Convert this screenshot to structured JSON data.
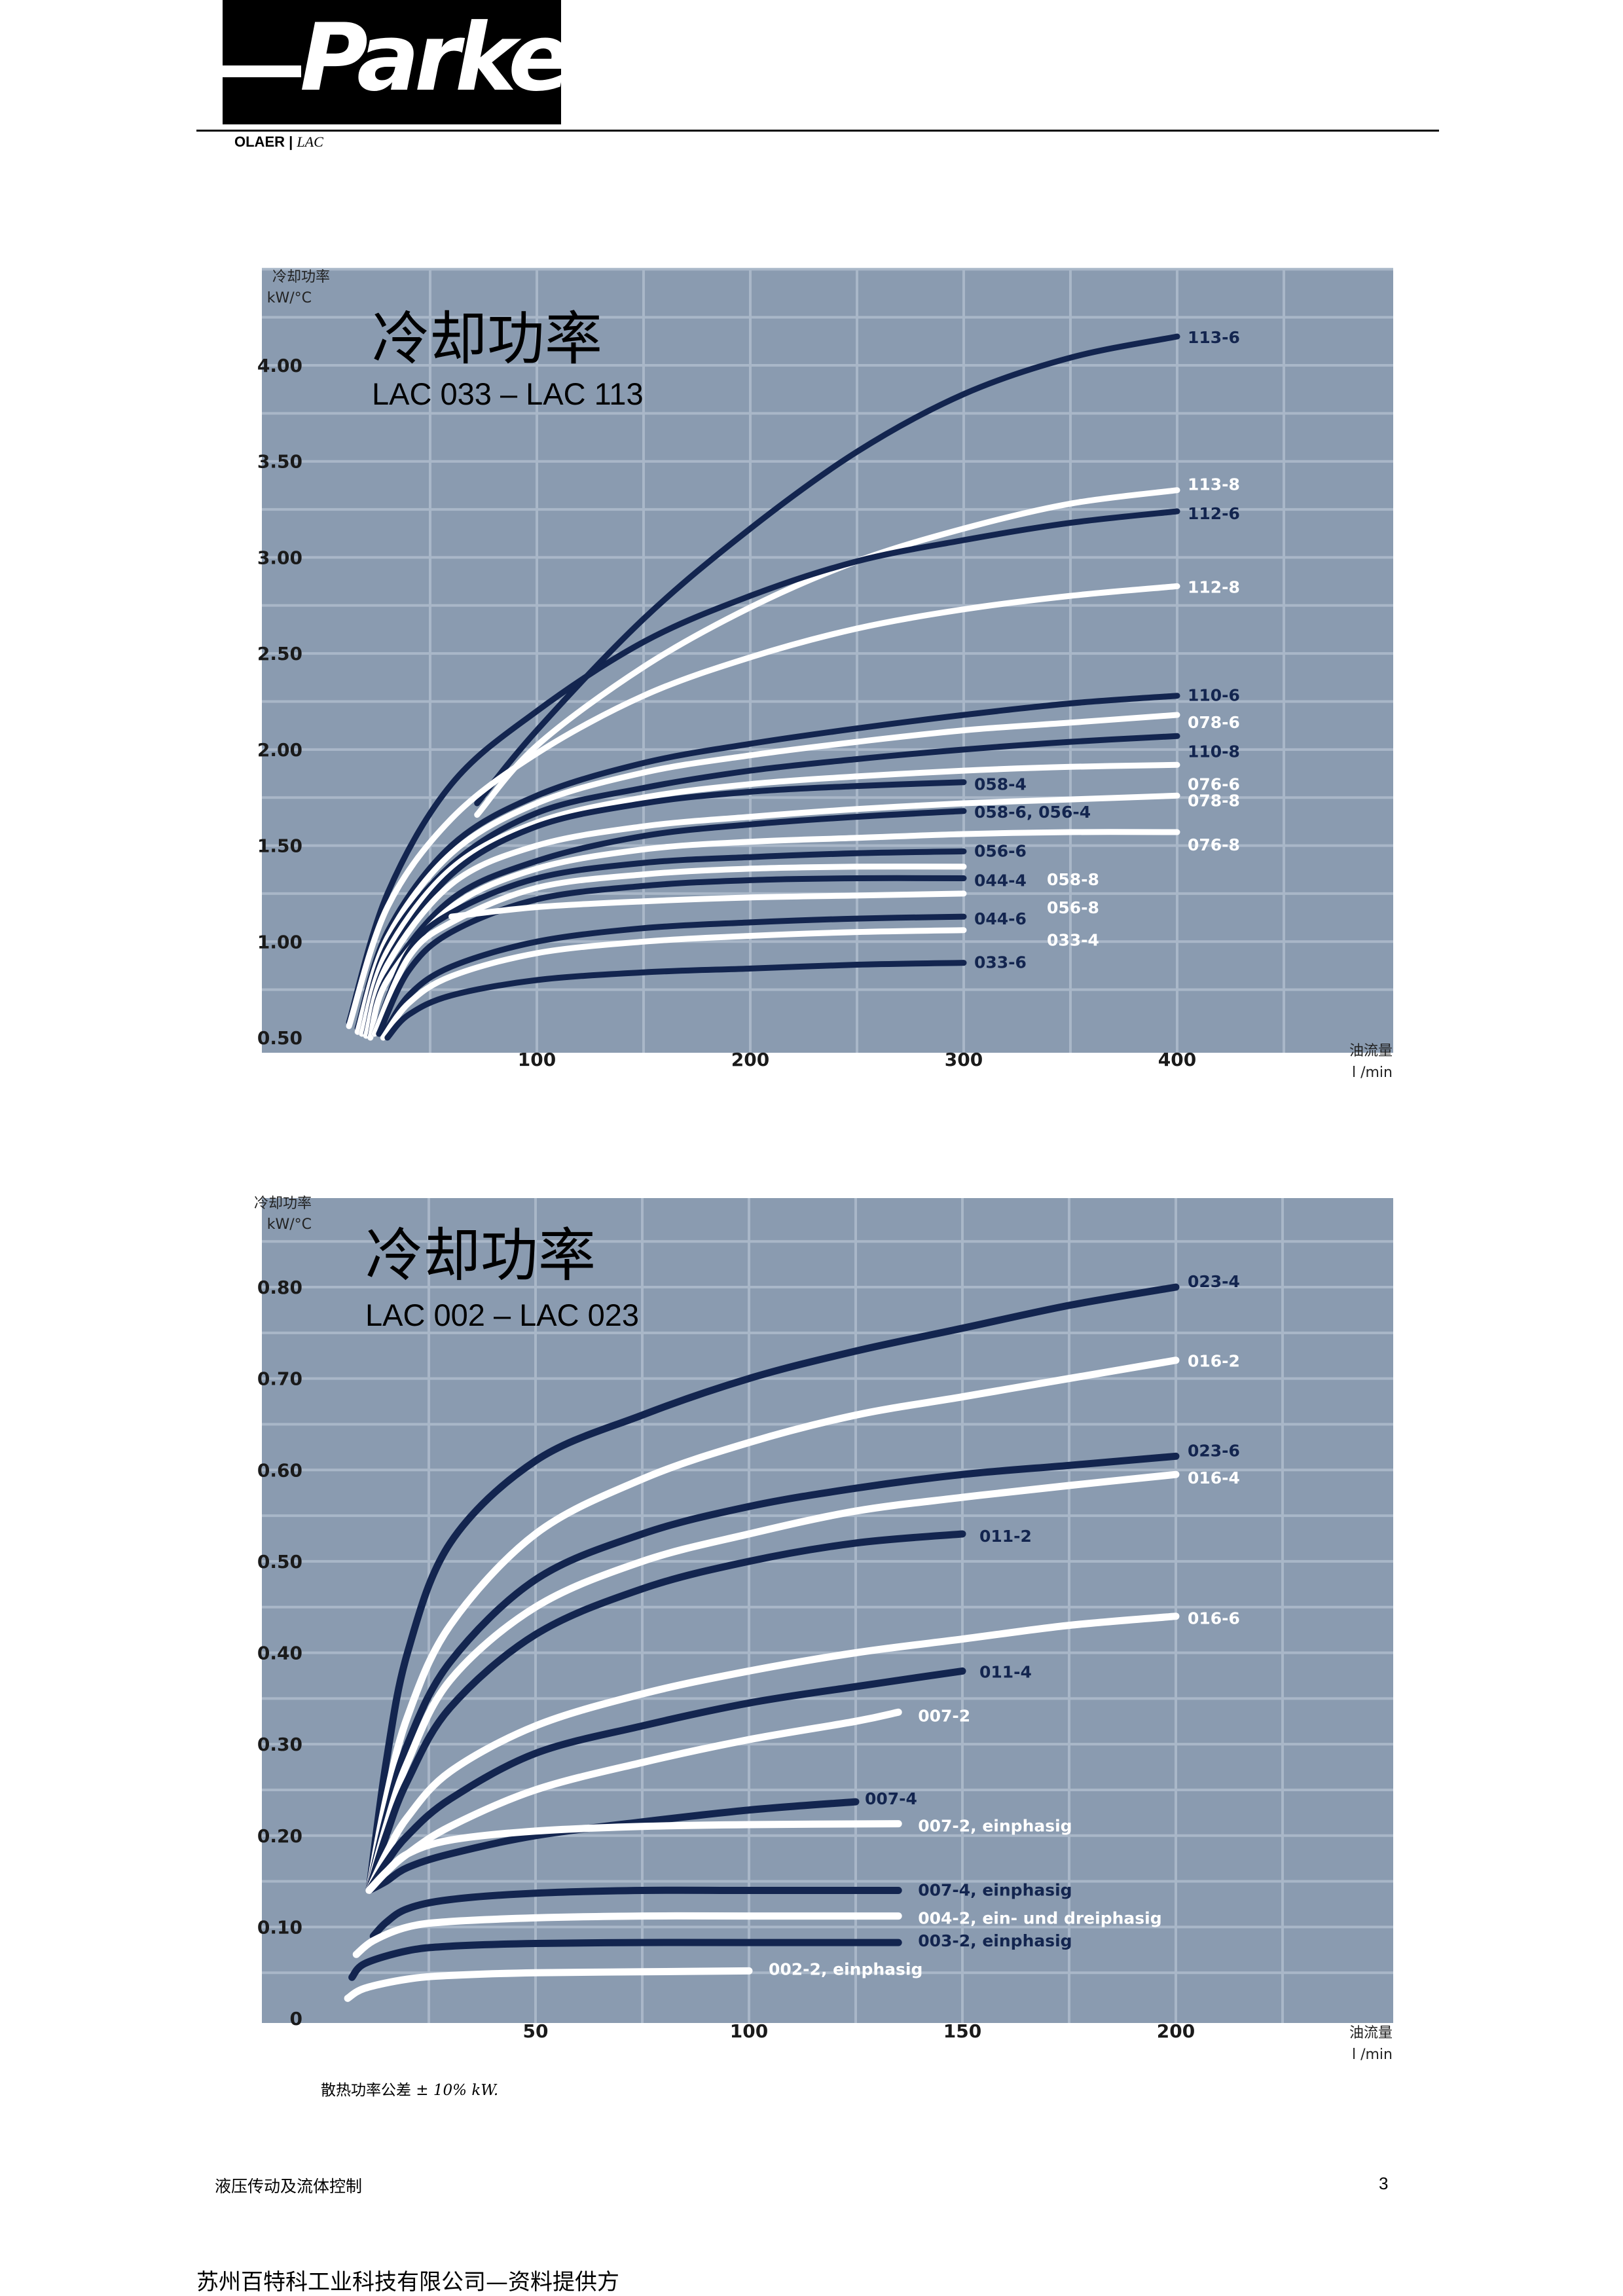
{
  "header": {
    "logo": "Parker",
    "brand": "OLAER |",
    "brand_sub": "LAC"
  },
  "colors": {
    "plot_bg": "#8a9bb0",
    "grid": "#a9b7c8",
    "navy": "#13254f",
    "white": "#ffffff",
    "label_navy": "#13254f",
    "label_white": "#ffffff"
  },
  "chart_data": [
    {
      "type": "line",
      "title": "冷却功率",
      "subtitle": "LAC 033 – LAC 113",
      "ylabel_line1": "冷却功率",
      "ylabel_line2": "kW/°C",
      "xlabel_line1": "油流量",
      "xlabel_line2": "l /min",
      "xlim": [
        0,
        450
      ],
      "ylim": [
        0.5,
        4.5
      ],
      "xticks": [
        100,
        200,
        300,
        400
      ],
      "yticks": [
        0.5,
        1.0,
        1.5,
        2.0,
        2.5,
        3.0,
        3.5,
        4.0
      ],
      "ytick_labels": [
        "0.50",
        "1.00",
        "1.50",
        "2.00",
        "2.50",
        "3.00",
        "3.50",
        "4.00"
      ],
      "xtick_labels": [
        "100",
        "200",
        "300",
        "400"
      ],
      "grid": true,
      "series": [
        {
          "name": "113-6",
          "color": "navy",
          "x": [
            72,
            100,
            150,
            200,
            250,
            300,
            350,
            400
          ],
          "y": [
            1.72,
            2.1,
            2.68,
            3.15,
            3.55,
            3.85,
            4.04,
            4.15
          ]
        },
        {
          "name": "113-8",
          "color": "white",
          "x": [
            72,
            100,
            150,
            200,
            250,
            300,
            350,
            400
          ],
          "y": [
            1.66,
            2.02,
            2.43,
            2.74,
            2.98,
            3.15,
            3.28,
            3.35
          ]
        },
        {
          "name": "112-6",
          "color": "navy",
          "x": [
            12,
            30,
            60,
            100,
            150,
            200,
            250,
            300,
            350,
            400
          ],
          "y": [
            0.58,
            1.25,
            1.82,
            2.2,
            2.56,
            2.8,
            2.98,
            3.09,
            3.18,
            3.24
          ]
        },
        {
          "name": "112-8",
          "color": "white",
          "x": [
            12,
            30,
            60,
            100,
            150,
            200,
            250,
            300,
            350,
            400
          ],
          "y": [
            0.56,
            1.18,
            1.64,
            1.98,
            2.28,
            2.48,
            2.63,
            2.73,
            2.8,
            2.85
          ]
        },
        {
          "name": "110-6",
          "color": "navy",
          "x": [
            16,
            30,
            60,
            100,
            150,
            200,
            250,
            300,
            350,
            400
          ],
          "y": [
            0.55,
            1.05,
            1.5,
            1.76,
            1.93,
            2.03,
            2.11,
            2.18,
            2.24,
            2.28
          ]
        },
        {
          "name": "078-6",
          "color": "white",
          "x": [
            16,
            30,
            60,
            100,
            150,
            200,
            250,
            300,
            350,
            400
          ],
          "y": [
            0.53,
            1.02,
            1.46,
            1.72,
            1.88,
            1.97,
            2.04,
            2.1,
            2.14,
            2.18
          ]
        },
        {
          "name": "110-8",
          "color": "navy",
          "x": [
            18,
            30,
            60,
            100,
            150,
            200,
            250,
            300,
            350,
            400
          ],
          "y": [
            0.52,
            0.98,
            1.4,
            1.67,
            1.8,
            1.89,
            1.95,
            2.0,
            2.04,
            2.07
          ]
        },
        {
          "name": "076-6",
          "color": "white",
          "x": [
            18,
            30,
            60,
            100,
            150,
            200,
            250,
            300,
            350,
            400
          ],
          "y": [
            0.52,
            0.95,
            1.38,
            1.62,
            1.75,
            1.82,
            1.86,
            1.89,
            1.91,
            1.92
          ]
        },
        {
          "name": "058-4",
          "color": "navy",
          "x": [
            20,
            30,
            60,
            100,
            150,
            200,
            250,
            300
          ],
          "y": [
            0.52,
            0.9,
            1.35,
            1.6,
            1.72,
            1.78,
            1.81,
            1.83
          ]
        },
        {
          "name": "078-8",
          "color": "white",
          "x": [
            20,
            30,
            60,
            100,
            150,
            200,
            250,
            300,
            350,
            400
          ],
          "y": [
            0.51,
            0.88,
            1.3,
            1.5,
            1.6,
            1.65,
            1.69,
            1.72,
            1.74,
            1.76
          ]
        },
        {
          "name": "058-6, 056-4",
          "color": "navy",
          "x": [
            22,
            30,
            60,
            100,
            150,
            200,
            250,
            300
          ],
          "y": [
            0.51,
            0.82,
            1.22,
            1.42,
            1.55,
            1.61,
            1.65,
            1.68
          ]
        },
        {
          "name": "076-8",
          "color": "white",
          "x": [
            22,
            30,
            60,
            100,
            150,
            200,
            250,
            300,
            350,
            400
          ],
          "y": [
            0.5,
            0.8,
            1.18,
            1.38,
            1.48,
            1.52,
            1.54,
            1.56,
            1.57,
            1.57
          ]
        },
        {
          "name": "056-6",
          "color": "navy",
          "x": [
            24,
            40,
            60,
            100,
            150,
            200,
            250,
            300
          ],
          "y": [
            0.52,
            0.95,
            1.15,
            1.33,
            1.41,
            1.44,
            1.46,
            1.47
          ]
        },
        {
          "name": "058-8",
          "color": "white",
          "x": [
            24,
            40,
            60,
            100,
            150,
            200,
            250,
            300
          ],
          "y": [
            0.52,
            0.92,
            1.1,
            1.28,
            1.35,
            1.38,
            1.39,
            1.39
          ]
        },
        {
          "name": "044-4",
          "color": "navy",
          "x": [
            26,
            40,
            60,
            100,
            150,
            200,
            250,
            300
          ],
          "y": [
            0.52,
            0.85,
            1.05,
            1.22,
            1.29,
            1.32,
            1.33,
            1.33
          ]
        },
        {
          "name": "056-8",
          "color": "white",
          "x": [
            60,
            100,
            150,
            200,
            250,
            300
          ],
          "y": [
            1.13,
            1.18,
            1.21,
            1.23,
            1.24,
            1.25
          ]
        },
        {
          "name": "044-6",
          "color": "navy",
          "x": [
            28,
            40,
            60,
            100,
            150,
            200,
            250,
            300
          ],
          "y": [
            0.51,
            0.72,
            0.87,
            1.0,
            1.07,
            1.1,
            1.12,
            1.13
          ]
        },
        {
          "name": "033-4",
          "color": "white",
          "x": [
            28,
            40,
            60,
            100,
            150,
            200,
            250,
            300
          ],
          "y": [
            0.5,
            0.68,
            0.82,
            0.94,
            1.0,
            1.03,
            1.05,
            1.06
          ]
        },
        {
          "name": "033-6",
          "color": "navy",
          "x": [
            30,
            40,
            60,
            100,
            150,
            200,
            250,
            300
          ],
          "y": [
            0.5,
            0.62,
            0.72,
            0.8,
            0.84,
            0.86,
            0.88,
            0.89
          ]
        }
      ]
    },
    {
      "type": "line",
      "title": "冷却功率",
      "subtitle": "LAC 002 – LAC 023",
      "ylabel_line1": "冷却功率",
      "ylabel_line2": "kW/°C",
      "xlabel_line1": "油流量",
      "xlabel_line2": "l /min",
      "xlim": [
        0,
        225
      ],
      "ylim": [
        0,
        0.9
      ],
      "xticks": [
        50,
        100,
        150,
        200
      ],
      "yticks": [
        0,
        0.1,
        0.2,
        0.3,
        0.4,
        0.5,
        0.6,
        0.7,
        0.8
      ],
      "ytick_labels": [
        "0",
        "0.10",
        "0.20",
        "0.30",
        "0.40",
        "0.50",
        "0.60",
        "0.70",
        "0.80"
      ],
      "xtick_labels": [
        "50",
        "100",
        "150",
        "200"
      ],
      "grid": true,
      "series": [
        {
          "name": "023-4",
          "color": "navy",
          "x": [
            11,
            15,
            20,
            30,
            50,
            75,
            100,
            125,
            150,
            175,
            200
          ],
          "y": [
            0.14,
            0.28,
            0.4,
            0.52,
            0.61,
            0.66,
            0.7,
            0.73,
            0.755,
            0.78,
            0.8
          ]
        },
        {
          "name": "016-2",
          "color": "white",
          "x": [
            11,
            15,
            20,
            30,
            50,
            75,
            100,
            125,
            150,
            175,
            200
          ],
          "y": [
            0.14,
            0.24,
            0.33,
            0.43,
            0.53,
            0.59,
            0.63,
            0.66,
            0.68,
            0.7,
            0.72
          ]
        },
        {
          "name": "023-6",
          "color": "navy",
          "x": [
            11,
            15,
            20,
            30,
            50,
            75,
            100,
            125,
            150,
            175,
            200
          ],
          "y": [
            0.14,
            0.22,
            0.3,
            0.39,
            0.48,
            0.53,
            0.56,
            0.58,
            0.595,
            0.605,
            0.615
          ]
        },
        {
          "name": "016-4",
          "color": "white",
          "x": [
            11,
            15,
            20,
            30,
            50,
            75,
            100,
            125,
            150,
            175,
            200
          ],
          "y": [
            0.14,
            0.21,
            0.28,
            0.37,
            0.45,
            0.5,
            0.53,
            0.555,
            0.57,
            0.583,
            0.595
          ]
        },
        {
          "name": "011-2",
          "color": "navy",
          "x": [
            11,
            15,
            20,
            30,
            50,
            75,
            100,
            125,
            150
          ],
          "y": [
            0.14,
            0.2,
            0.26,
            0.34,
            0.42,
            0.47,
            0.5,
            0.52,
            0.53
          ]
        },
        {
          "name": "016-6",
          "color": "white",
          "x": [
            11,
            15,
            20,
            30,
            50,
            75,
            100,
            125,
            150,
            175,
            200
          ],
          "y": [
            0.14,
            0.18,
            0.22,
            0.27,
            0.32,
            0.355,
            0.38,
            0.4,
            0.415,
            0.43,
            0.44
          ]
        },
        {
          "name": "011-4",
          "color": "navy",
          "x": [
            11,
            15,
            20,
            30,
            50,
            75,
            100,
            125,
            150
          ],
          "y": [
            0.14,
            0.17,
            0.2,
            0.24,
            0.29,
            0.32,
            0.345,
            0.363,
            0.38
          ]
        },
        {
          "name": "007-2",
          "color": "white",
          "x": [
            11,
            15,
            20,
            30,
            50,
            75,
            100,
            125,
            135
          ],
          "y": [
            0.14,
            0.16,
            0.18,
            0.21,
            0.25,
            0.28,
            0.305,
            0.325,
            0.335
          ]
        },
        {
          "name": "007-4",
          "color": "navy",
          "x": [
            11,
            15,
            20,
            30,
            50,
            75,
            100,
            125
          ],
          "y": [
            0.14,
            0.15,
            0.165,
            0.18,
            0.2,
            0.215,
            0.228,
            0.237
          ]
        },
        {
          "name": "007-2, einphasig",
          "color": "white",
          "x": [
            11,
            15,
            20,
            30,
            50,
            75,
            100,
            135
          ],
          "y": [
            0.14,
            0.16,
            0.18,
            0.195,
            0.205,
            0.21,
            0.212,
            0.213
          ]
        },
        {
          "name": "007-4, einphasig",
          "color": "navy",
          "x": [
            12,
            15,
            20,
            30,
            50,
            75,
            100,
            135
          ],
          "y": [
            0.09,
            0.105,
            0.12,
            0.13,
            0.137,
            0.14,
            0.14,
            0.14
          ]
        },
        {
          "name": "004-2, ein- und dreiphasig",
          "color": "white",
          "x": [
            8,
            12,
            20,
            30,
            50,
            75,
            100,
            135
          ],
          "y": [
            0.07,
            0.085,
            0.1,
            0.106,
            0.11,
            0.112,
            0.112,
            0.112
          ]
        },
        {
          "name": "003-2, einphasig",
          "color": "navy",
          "x": [
            7,
            10,
            20,
            30,
            50,
            75,
            100,
            135
          ],
          "y": [
            0.045,
            0.06,
            0.074,
            0.079,
            0.082,
            0.083,
            0.083,
            0.083
          ]
        },
        {
          "name": "002-2, einphasig",
          "color": "white",
          "x": [
            6,
            10,
            20,
            30,
            50,
            75,
            100
          ],
          "y": [
            0.022,
            0.033,
            0.043,
            0.047,
            0.05,
            0.051,
            0.052
          ]
        }
      ]
    }
  ],
  "tolerance": {
    "prefix": "散热功率公差 ±",
    "value": "10% kW."
  },
  "footer": {
    "left": "液压传动及流体控制",
    "page": "3"
  },
  "supplier": "苏州百特科工业科技有限公司—资料提供方"
}
